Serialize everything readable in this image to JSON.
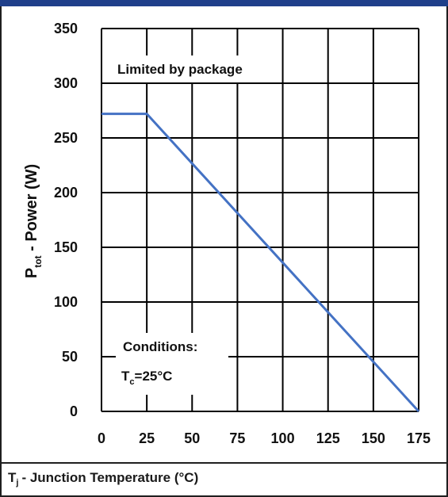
{
  "colors": {
    "frame_accent": "#1f3f8a",
    "series_line": "#4472c4",
    "grid": "#000000"
  },
  "chart_data": {
    "type": "line",
    "title": "",
    "ylabel": {
      "main": "P",
      "sub": "tot",
      "rest": " - Power (W)"
    },
    "xlabel": {
      "main": "T",
      "sub": "j",
      "rest": "- Junction Temperature (°C)"
    },
    "xlim": [
      0,
      175
    ],
    "ylim": [
      0,
      350
    ],
    "x_ticks": [
      0,
      25,
      50,
      75,
      100,
      125,
      150,
      175
    ],
    "y_ticks": [
      0,
      50,
      100,
      150,
      200,
      250,
      300,
      350
    ],
    "grid": true,
    "series": [
      {
        "x": [
          0,
          25,
          175
        ],
        "y": [
          272,
          272,
          0
        ]
      }
    ],
    "annotations": {
      "limited": "Limited by package",
      "conditions_title": "Conditions:",
      "conditions_main": "T",
      "conditions_sub": "c",
      "conditions_value": "=25°C"
    }
  }
}
